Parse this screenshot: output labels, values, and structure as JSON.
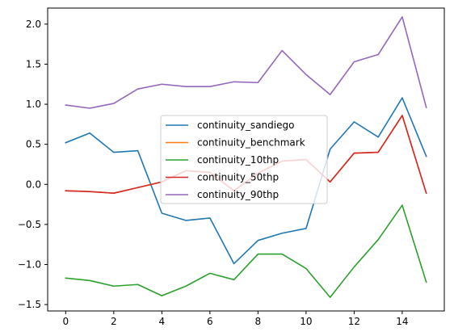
{
  "chart_data": {
    "type": "line",
    "x": [
      0,
      1,
      2,
      3,
      4,
      5,
      6,
      7,
      8,
      9,
      10,
      11,
      12,
      13,
      14,
      15
    ],
    "xlim": [
      -0.75,
      15.75
    ],
    "ylim": [
      -1.58,
      2.2
    ],
    "xticks": [
      0,
      2,
      4,
      6,
      8,
      10,
      12,
      14
    ],
    "xtick_labels": [
      "0",
      "2",
      "4",
      "6",
      "8",
      "10",
      "12",
      "14"
    ],
    "yticks": [
      -1.5,
      -1.0,
      -0.5,
      0.0,
      0.5,
      1.0,
      1.5,
      2.0
    ],
    "ytick_labels": [
      "−1.5",
      "−1.0",
      "−0.5",
      "0.0",
      "0.5",
      "1.0",
      "1.5",
      "2.0"
    ],
    "grid": false,
    "legend_position": "center",
    "series": [
      {
        "name": "continuity_sandiego",
        "color": "#1f77b4",
        "values": [
          0.52,
          0.64,
          0.4,
          0.42,
          -0.36,
          -0.45,
          -0.42,
          -0.99,
          -0.7,
          -0.61,
          -0.55,
          0.44,
          0.78,
          0.59,
          1.08,
          0.35
        ]
      },
      {
        "name": "continuity_benchmark",
        "color": "#ff7f0e",
        "values": [
          -0.08,
          -0.09,
          -0.11,
          -0.04,
          0.03,
          0.17,
          0.15,
          -0.08,
          0.14,
          0.29,
          0.31,
          0.03,
          0.39,
          0.4,
          0.86,
          -0.11
        ]
      },
      {
        "name": "continuity_10thp",
        "color": "#2ca02c",
        "values": [
          -1.17,
          -1.2,
          -1.27,
          -1.25,
          -1.39,
          -1.27,
          -1.11,
          -1.19,
          -0.87,
          -0.87,
          -1.05,
          -1.41,
          -1.03,
          -0.69,
          -0.26,
          -1.22
        ]
      },
      {
        "name": "continuity_50thp",
        "color": "#d62728",
        "values": [
          -0.08,
          -0.09,
          -0.11,
          -0.04,
          0.03,
          0.17,
          0.15,
          -0.08,
          0.14,
          0.29,
          0.31,
          0.03,
          0.39,
          0.4,
          0.86,
          -0.11
        ]
      },
      {
        "name": "continuity_90thp",
        "color": "#9467bd",
        "values": [
          0.99,
          0.95,
          1.01,
          1.19,
          1.25,
          1.22,
          1.22,
          1.28,
          1.27,
          1.67,
          1.37,
          1.12,
          1.53,
          1.62,
          2.09,
          0.96
        ]
      }
    ]
  }
}
